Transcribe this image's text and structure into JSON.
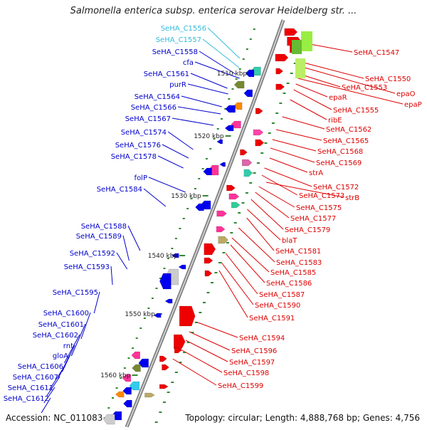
{
  "title": "Salmonella enterica subsp. enterica serovar Heidelberg str. ...",
  "footer": {
    "accession": "Accession: NC_011083",
    "topology": "Topology: circular; Length: 4,888,768 bp; Genes: 4,756"
  },
  "colors": {
    "reverse_strand_label": "#0000cc",
    "forward_strand_label": "#dd0000",
    "highlight_label": "#33bbdd",
    "backbone": "#888888",
    "tick": "#338833"
  },
  "kbp_ticks": [
    "1510 kbp",
    "1520 kbp",
    "1530 kbp",
    "1540 kbp",
    "1550 kbp",
    "1560 kbp"
  ],
  "left_labels": [
    "SeHA_C1556",
    "SeHA_C1557",
    "SeHA_C1558",
    "cfa",
    "SeHA_C1561",
    "purR",
    "SeHA_C1564",
    "SeHA_C1566",
    "SeHA_C1567",
    "SeHA_C1574",
    "SeHA_C1576",
    "SeHA_C1578",
    "folP",
    "SeHA_C1584",
    "SeHA_C1588",
    "SeHA_C1589",
    "SeHA_C1592",
    "SeHA_C1593",
    "SeHA_C1595",
    "SeHA_C1600",
    "SeHA_C1601",
    "SeHA_C1602",
    "rnt",
    "gloA",
    "SeHA_C1606",
    "SeHA_C1607",
    "SeHA_C1611",
    "SeHA_C1612"
  ],
  "right_labels": [
    "SeHA_C1547",
    "SeHA_C1550",
    "epaO",
    "SeHA_C1553",
    "epaP",
    "epaR",
    "SeHA_C1555",
    "ribE",
    "SeHA_C1562",
    "SeHA_C1565",
    "SeHA_C1568",
    "SeHA_C1569",
    "strA",
    "SeHA_C1572",
    "SeHA_C1573",
    "strB",
    "SeHA_C1575",
    "SeHA_C1577",
    "SeHA_C1579",
    "blaT",
    "SeHA_C1581",
    "SeHA_C1583",
    "SeHA_C1585",
    "SeHA_C1586",
    "SeHA_C1587",
    "SeHA_C1590",
    "SeHA_C1591",
    "SeHA_C1594",
    "SeHA_C1596",
    "SeHA_C1597",
    "SeHA_C1598",
    "SeHA_C1599"
  ]
}
